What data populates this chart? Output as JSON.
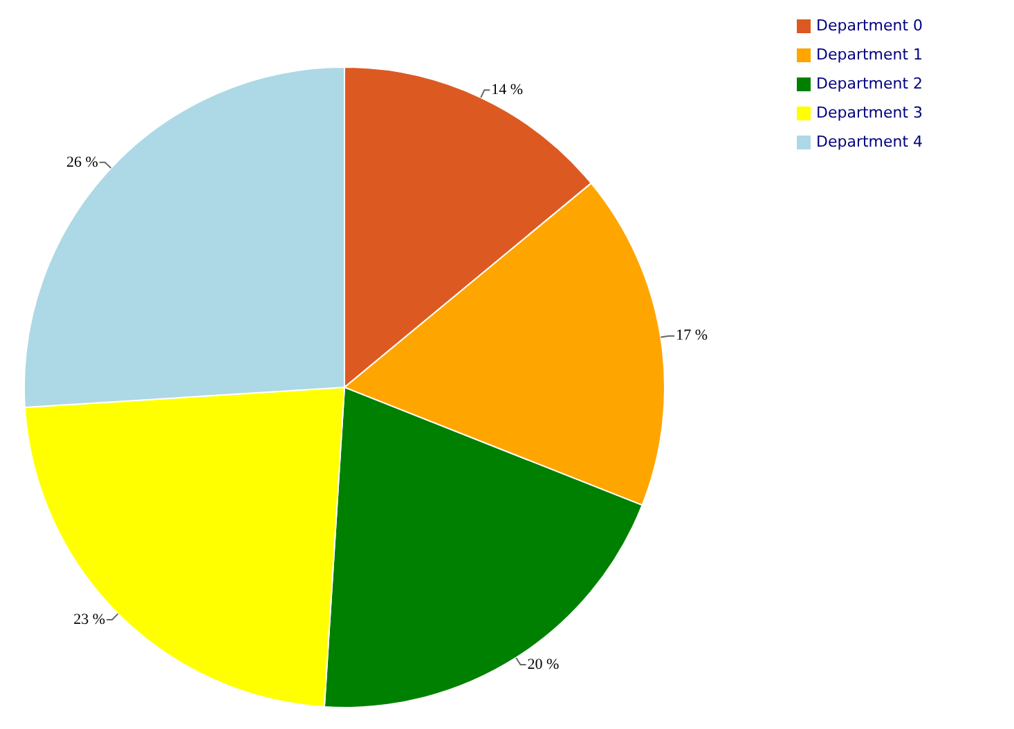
{
  "chart_data": {
    "type": "pie",
    "categories": [
      "Department 0",
      "Department 1",
      "Department 2",
      "Department 3",
      "Department 4"
    ],
    "values": [
      14,
      17,
      20,
      23,
      26
    ],
    "colors": [
      "#dc5a22",
      "#ffa500",
      "#008000",
      "#ffff00",
      "#add8e6"
    ],
    "value_labels": [
      "14 %",
      "17 %",
      "20 %",
      "23 %",
      "26 %"
    ],
    "legend": "top right"
  }
}
